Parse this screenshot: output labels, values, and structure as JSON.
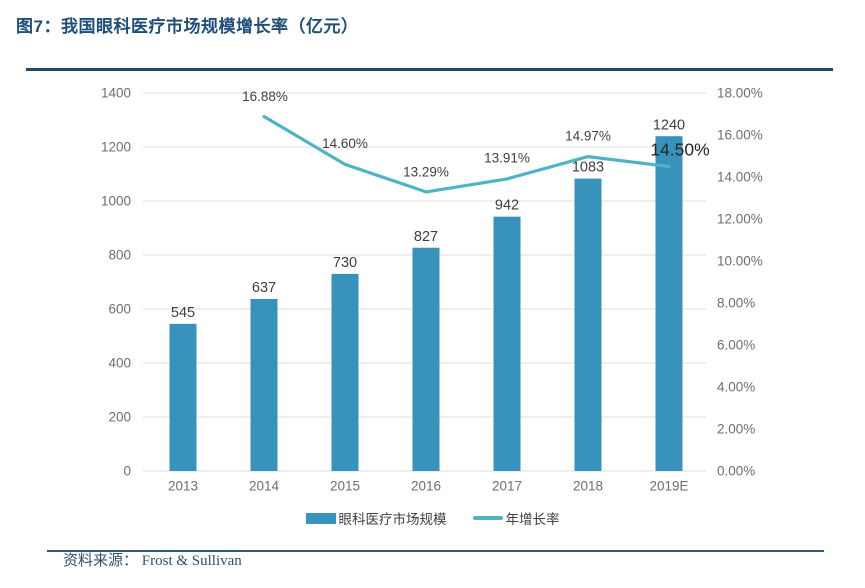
{
  "header": {
    "title": "图7：我国眼科医疗市场规模增长率（亿元）"
  },
  "legend": {
    "bar_label": "眼科医疗市场规模",
    "line_label": "年增长率"
  },
  "footer": {
    "source_label": "资料来源：",
    "source_value": "Frost & Sullivan"
  },
  "colors": {
    "title": "#1F4E79",
    "rule_top": "#24485C",
    "rule_bottom": "#2F5A78",
    "bar": "#3792BC",
    "line": "#4EB3C4",
    "grid": "#DCDCDC",
    "axis_text": "#6E6E6E",
    "value_label": "#3F3F3F",
    "emphasis_label": "#262626",
    "footer_text": "#33506B"
  },
  "chart_data": {
    "type": "bar+line",
    "title": "我国眼科医疗市场规模增长率（亿元）",
    "categories": [
      "2013",
      "2014",
      "2015",
      "2016",
      "2017",
      "2018",
      "2019E"
    ],
    "series": [
      {
        "name": "眼科医疗市场规模",
        "type": "bar",
        "axis": "left",
        "values": [
          545,
          637,
          730,
          827,
          942,
          1083,
          1240
        ],
        "value_labels": [
          "545",
          "637",
          "730",
          "827",
          "942",
          "1083",
          "1240"
        ]
      },
      {
        "name": "年增长率",
        "type": "line",
        "axis": "right",
        "values": [
          null,
          16.88,
          14.6,
          13.29,
          13.91,
          14.97,
          14.5
        ],
        "point_labels": [
          null,
          "16.88%",
          "14.60%",
          "13.29%",
          "13.91%",
          "14.97%",
          "14.50%"
        ]
      }
    ],
    "left_axis": {
      "min": 0,
      "max": 1400,
      "step": 200,
      "tick_labels": [
        "0",
        "200",
        "400",
        "600",
        "800",
        "1000",
        "1200",
        "1400"
      ]
    },
    "right_axis": {
      "min": 0,
      "max": 18,
      "step": 2,
      "tick_labels": [
        "0.00%",
        "2.00%",
        "4.00%",
        "6.00%",
        "8.00%",
        "10.00%",
        "12.00%",
        "14.00%",
        "16.00%",
        "18.00%"
      ]
    },
    "grid": true,
    "legend_position": "bottom"
  }
}
